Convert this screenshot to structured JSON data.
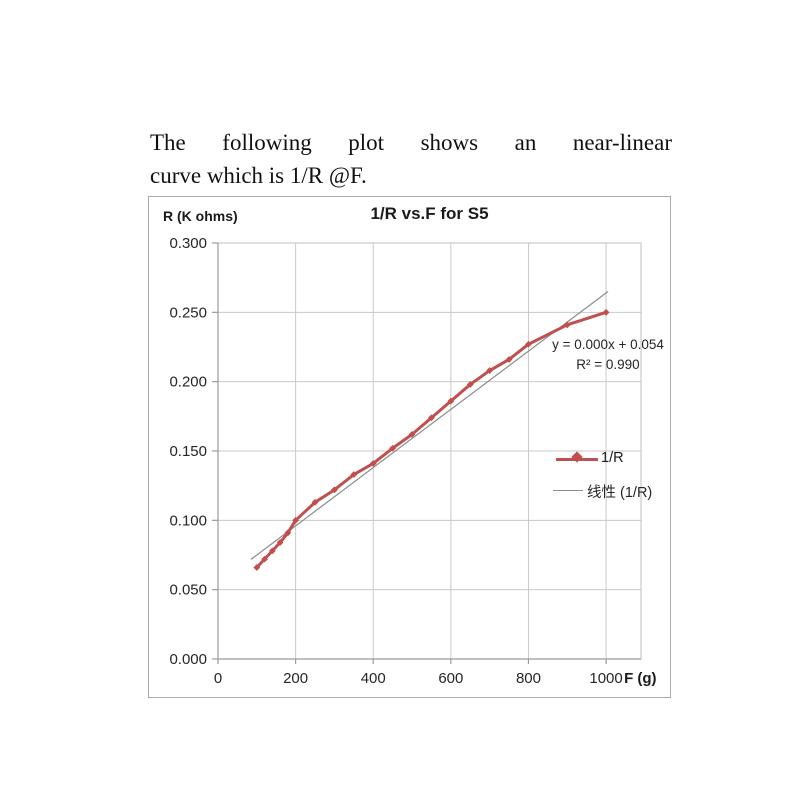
{
  "intro": {
    "line1": "The following plot shows an near-linear",
    "line2": "curve which is 1/R @F."
  },
  "chart": {
    "title": "1/R vs.F for S5",
    "y_axis_title": "R (K ohms)",
    "x_axis_title": "F (g)",
    "annotation": {
      "equation": "y = 0.000x + 0.054",
      "r_squared": "R² = 0.990"
    },
    "legend": {
      "items": [
        {
          "label": "1/R"
        },
        {
          "label": "线性 (1/R)"
        }
      ]
    }
  },
  "chart_data": {
    "type": "line",
    "title": "1/R vs.F for S5",
    "xlabel": "F (g)",
    "ylabel": "R (K ohms)",
    "xlim": [
      0,
      1090
    ],
    "ylim": [
      0,
      0.3
    ],
    "x_ticks": [
      0,
      200,
      400,
      600,
      800,
      1000
    ],
    "y_ticks": [
      0,
      0.05,
      0.1,
      0.15,
      0.2,
      0.25,
      0.3
    ],
    "grid": true,
    "legend_position": "inside right",
    "series": [
      {
        "name": "1/R",
        "color": "#c0504d",
        "marker": "diamond",
        "x": [
          100,
          120,
          140,
          160,
          180,
          200,
          250,
          300,
          350,
          400,
          450,
          500,
          550,
          600,
          650,
          700,
          750,
          800,
          900,
          1000
        ],
        "y": [
          0.066,
          0.072,
          0.078,
          0.084,
          0.091,
          0.1,
          0.113,
          0.122,
          0.133,
          0.141,
          0.152,
          0.162,
          0.174,
          0.186,
          0.198,
          0.208,
          0.216,
          0.227,
          0.241,
          0.25
        ]
      }
    ],
    "trendline": {
      "name": "线性 (1/R)",
      "color": "#8c8c8c",
      "slope": 0.00021,
      "intercept": 0.054,
      "x_range": [
        85,
        1005
      ],
      "equation": "y = 0.000x + 0.054",
      "r2": 0.99
    },
    "style": {
      "grid_color": "#c9c9c9",
      "axis_color": "#9b9b9b",
      "border_color": "#bfbfbf",
      "text_color": "#262626",
      "series_width": 3
    }
  }
}
